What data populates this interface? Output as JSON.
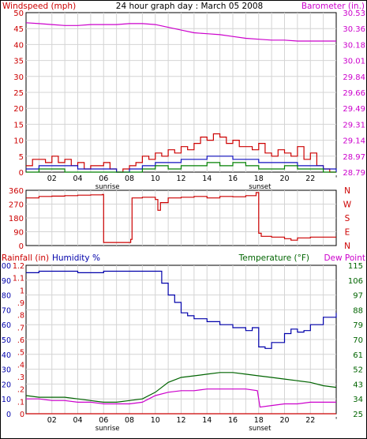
{
  "colors": {
    "windspeed": "#cc0000",
    "wind_avg": "#1010c0",
    "wind_gust_green": "#008000",
    "barometer": "#cc00cc",
    "direction": "#cc0000",
    "rainfall": "#cc0000",
    "humidity": "#0000aa",
    "temperature": "#006400",
    "dew_point": "#cc00cc",
    "grid": "#d4d4d4",
    "axis": "#000000",
    "outer_border": "#000000"
  },
  "chart_data": [
    {
      "type": "line",
      "id": "wind-barometer",
      "title": "24 hour graph day : March 05 2008",
      "left_label": "Windspeed (mph)",
      "right_label": "Barometer (in.)",
      "x_ticks": [
        "02",
        "04",
        "06",
        "08",
        "10",
        "12",
        "14",
        "16",
        "18",
        "20",
        "22",
        "'"
      ],
      "annotations": [
        {
          "text": "sunrise",
          "x_hour": 6.3
        },
        {
          "text": "sunset",
          "x_hour": 18.1
        }
      ],
      "xlim": [
        0,
        24
      ],
      "ylim_left": [
        0,
        50
      ],
      "yticks_left": [
        "0",
        "5",
        "10",
        "15",
        "20",
        "25",
        "30",
        "35",
        "40",
        "45",
        "50"
      ],
      "ylim_right": [
        28.79,
        30.53
      ],
      "yticks_right": [
        "28.79",
        "28.97",
        "29.14",
        "29.31",
        "29.49",
        "29.66",
        "29.84",
        "30.01",
        "30.18",
        "30.36",
        "30.53"
      ],
      "series": [
        {
          "name": "Barometer (in.)",
          "axis": "right",
          "x": [
            0,
            1,
            2,
            3,
            4,
            5,
            6,
            7,
            8,
            9,
            10,
            11,
            12,
            13,
            14,
            15,
            16,
            17,
            18,
            19,
            20,
            21,
            22,
            23,
            24
          ],
          "values": [
            30.42,
            30.41,
            30.4,
            30.39,
            30.39,
            30.4,
            30.4,
            30.4,
            30.41,
            30.41,
            30.4,
            30.37,
            30.34,
            30.31,
            30.3,
            30.29,
            30.27,
            30.25,
            30.24,
            30.23,
            30.23,
            30.22,
            30.22,
            30.22,
            30.22
          ]
        },
        {
          "name": "Windspeed gust",
          "axis": "left",
          "x": [
            0,
            0.5,
            1,
            1.5,
            2,
            2.5,
            3,
            3.5,
            4,
            4.5,
            5,
            5.5,
            6,
            6.5,
            7,
            7.5,
            8,
            8.5,
            9,
            9.5,
            10,
            10.5,
            11,
            11.5,
            12,
            12.5,
            13,
            13.5,
            14,
            14.5,
            15,
            15.5,
            16,
            16.5,
            17,
            17.5,
            18,
            18.5,
            19,
            19.5,
            20,
            20.5,
            21,
            21.5,
            22,
            22.5,
            23,
            23.5,
            24
          ],
          "values": [
            2,
            4,
            4,
            3,
            5,
            3,
            4,
            2,
            3,
            1,
            2,
            2,
            3,
            1,
            0,
            1,
            2,
            3,
            5,
            4,
            6,
            5,
            7,
            6,
            8,
            7,
            9,
            11,
            10,
            12,
            11,
            9,
            10,
            8,
            8,
            7,
            9,
            6,
            5,
            7,
            6,
            5,
            8,
            4,
            6,
            2,
            1,
            0,
            0
          ]
        },
        {
          "name": "Windspeed average",
          "axis": "left",
          "x": [
            0,
            1,
            2,
            3,
            4,
            5,
            6,
            7,
            8,
            9,
            10,
            11,
            12,
            13,
            14,
            15,
            16,
            17,
            18,
            19,
            20,
            21,
            22,
            23,
            24
          ],
          "values": [
            1,
            2,
            2,
            2,
            1,
            1,
            1,
            0,
            1,
            2,
            3,
            3,
            4,
            4,
            5,
            5,
            4,
            4,
            3,
            3,
            3,
            2,
            2,
            1,
            0
          ]
        },
        {
          "name": "Windspeed low",
          "axis": "left",
          "x": [
            0,
            1,
            2,
            3,
            4,
            5,
            6,
            7,
            8,
            9,
            10,
            11,
            12,
            13,
            14,
            15,
            16,
            17,
            18,
            19,
            20,
            21,
            22,
            23,
            24
          ],
          "values": [
            0,
            1,
            1,
            0,
            0,
            0,
            0,
            0,
            0,
            1,
            2,
            1,
            2,
            2,
            3,
            2,
            3,
            2,
            1,
            1,
            2,
            1,
            1,
            0,
            0
          ]
        }
      ]
    },
    {
      "type": "line",
      "id": "wind-direction",
      "xlim": [
        0,
        24
      ],
      "ylim": [
        0,
        360
      ],
      "yticks_left": [
        "0",
        "90",
        "180",
        "270",
        "360"
      ],
      "yticks_right": [
        "N",
        "E",
        "S",
        "W",
        "N"
      ],
      "series": [
        {
          "name": "Wind direction",
          "x": [
            0,
            1,
            2,
            3,
            4,
            5,
            5.9,
            6.0,
            8.1,
            8.2,
            9,
            10,
            10.2,
            10.4,
            11,
            12,
            13,
            14,
            15,
            16,
            17,
            17.8,
            18.0,
            18.2,
            19,
            20,
            20.5,
            21,
            22,
            23,
            24
          ],
          "values": [
            310,
            320,
            322,
            325,
            328,
            330,
            332,
            20,
            40,
            310,
            315,
            300,
            230,
            280,
            310,
            315,
            320,
            310,
            320,
            318,
            325,
            345,
            80,
            60,
            55,
            45,
            35,
            50,
            55,
            55,
            55
          ]
        }
      ]
    },
    {
      "type": "line",
      "id": "humidity-temperature",
      "labels": {
        "rainfall": "Rainfall (in)",
        "humidity": "Humidity %",
        "temperature": "Temperature (°F)",
        "dew_point": "Dew Point"
      },
      "x_ticks": [
        "02",
        "04",
        "06",
        "08",
        "10",
        "12",
        "14",
        "16",
        "18",
        "20",
        "22",
        "'"
      ],
      "annotations": [
        {
          "text": "sunrise",
          "x_hour": 6.3
        },
        {
          "text": "sunset",
          "x_hour": 18.1
        }
      ],
      "xlim": [
        0,
        24
      ],
      "humidity_ticks": [
        "0",
        "10",
        "20",
        "30",
        "40",
        "50",
        "60",
        "70",
        "80",
        "90",
        "100"
      ],
      "rainfall_ticks": [
        "0",
        ".1",
        ".2",
        ".3",
        ".4",
        ".5",
        ".6",
        ".7",
        ".8",
        ".9",
        "1",
        "1.1",
        "1.2"
      ],
      "temperature_ticks": [
        "25",
        "34",
        "43",
        "52",
        "61",
        "70",
        "79",
        "88",
        "97",
        "106",
        "115"
      ],
      "ylim_humidity": [
        0,
        100
      ],
      "ylim_temperature": [
        25,
        115
      ],
      "series": [
        {
          "name": "Humidity %",
          "axis": "humidity",
          "x": [
            0,
            1,
            2,
            3,
            4,
            5,
            6,
            7,
            8,
            9,
            10,
            10.5,
            11,
            11.5,
            12,
            12.5,
            13,
            14,
            15,
            16,
            17,
            17.5,
            18,
            18.5,
            19,
            20,
            20.5,
            21,
            21.5,
            22,
            23,
            24
          ],
          "values": [
            95,
            96,
            96,
            96,
            95,
            95,
            96,
            96,
            96,
            96,
            96,
            88,
            80,
            75,
            68,
            66,
            64,
            62,
            60,
            58,
            56,
            58,
            45,
            44,
            48,
            54,
            57,
            55,
            56,
            60,
            65,
            68
          ]
        },
        {
          "name": "Temperature (°F)",
          "axis": "temperature",
          "x": [
            0,
            1,
            2,
            3,
            4,
            5,
            6,
            7,
            8,
            9,
            10,
            11,
            12,
            13,
            14,
            15,
            16,
            17,
            18,
            19,
            20,
            21,
            22,
            23,
            24
          ],
          "values": [
            36,
            35,
            35,
            35,
            34,
            33,
            32,
            32,
            33,
            34,
            38,
            44,
            47,
            48,
            49,
            50,
            50,
            49,
            48,
            47,
            46,
            45,
            44,
            42,
            41
          ]
        },
        {
          "name": "Dew Point",
          "axis": "temperature",
          "x": [
            0,
            1,
            2,
            3,
            4,
            5,
            6,
            7,
            8,
            9,
            10,
            11,
            12,
            13,
            14,
            15,
            16,
            17,
            17.9,
            18.1,
            19,
            20,
            21,
            22,
            23,
            24
          ],
          "values": [
            34,
            34,
            33,
            33,
            32,
            32,
            31,
            31,
            31,
            32,
            36,
            38,
            39,
            39,
            40,
            40,
            40,
            40,
            39,
            29,
            30,
            31,
            31,
            32,
            32,
            32
          ]
        },
        {
          "name": "Rainfall (in)",
          "axis": "humidity",
          "x": [
            0,
            24
          ],
          "values": [
            0,
            0
          ]
        }
      ]
    }
  ]
}
